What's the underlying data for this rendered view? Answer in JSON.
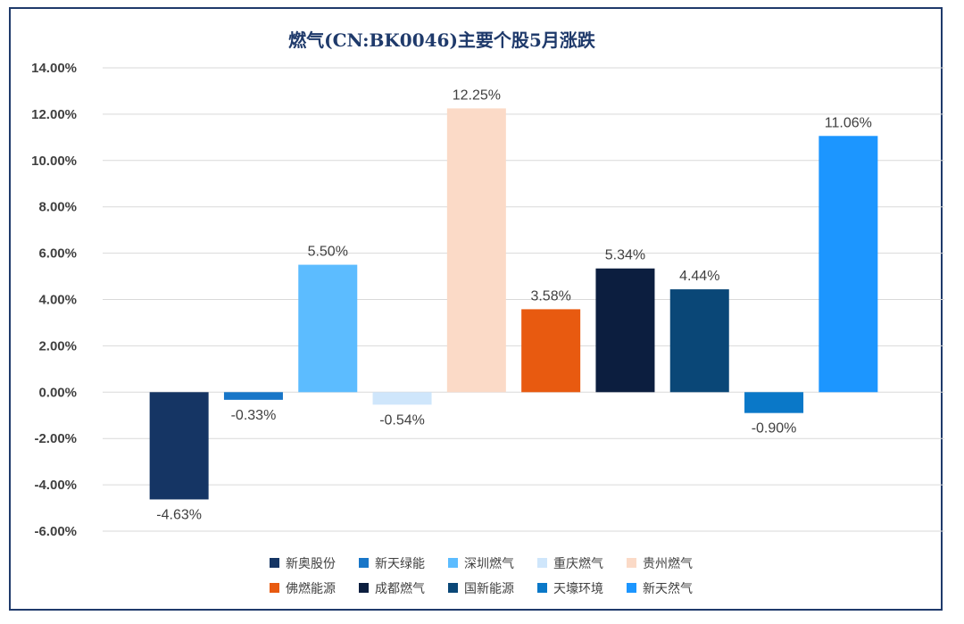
{
  "chart_data": {
    "type": "bar",
    "title": "燃气(CN:BK0046)主要个股5月涨跌",
    "xlabel": "",
    "ylabel": "",
    "ylim": [
      -6,
      14
    ],
    "ytick_step": 2,
    "ytick_labels": [
      "-6.00%",
      "-4.00%",
      "-2.00%",
      "0.00%",
      "2.00%",
      "4.00%",
      "6.00%",
      "8.00%",
      "10.00%",
      "12.00%",
      "14.00%"
    ],
    "grid": true,
    "legend_position": "bottom",
    "categories": [
      "新奥股份",
      "新天绿能",
      "深圳燃气",
      "重庆燃气",
      "贵州燃气",
      "佛燃能源",
      "成都燃气",
      "国新能源",
      "天壕环境",
      "新天然气"
    ],
    "values": [
      -4.63,
      -0.33,
      5.5,
      -0.54,
      12.25,
      3.58,
      5.34,
      4.44,
      -0.9,
      11.06
    ],
    "value_labels": [
      "-4.63%",
      "-0.33%",
      "5.50%",
      "-0.54%",
      "12.25%",
      "3.58%",
      "5.34%",
      "4.44%",
      "-0.90%",
      "11.06%"
    ],
    "colors": [
      "#153564",
      "#1876c8",
      "#5cbcff",
      "#cfe6fb",
      "#fbdac7",
      "#e85a10",
      "#0c1e3f",
      "#0a4777",
      "#0a78c8",
      "#1c96ff"
    ]
  }
}
